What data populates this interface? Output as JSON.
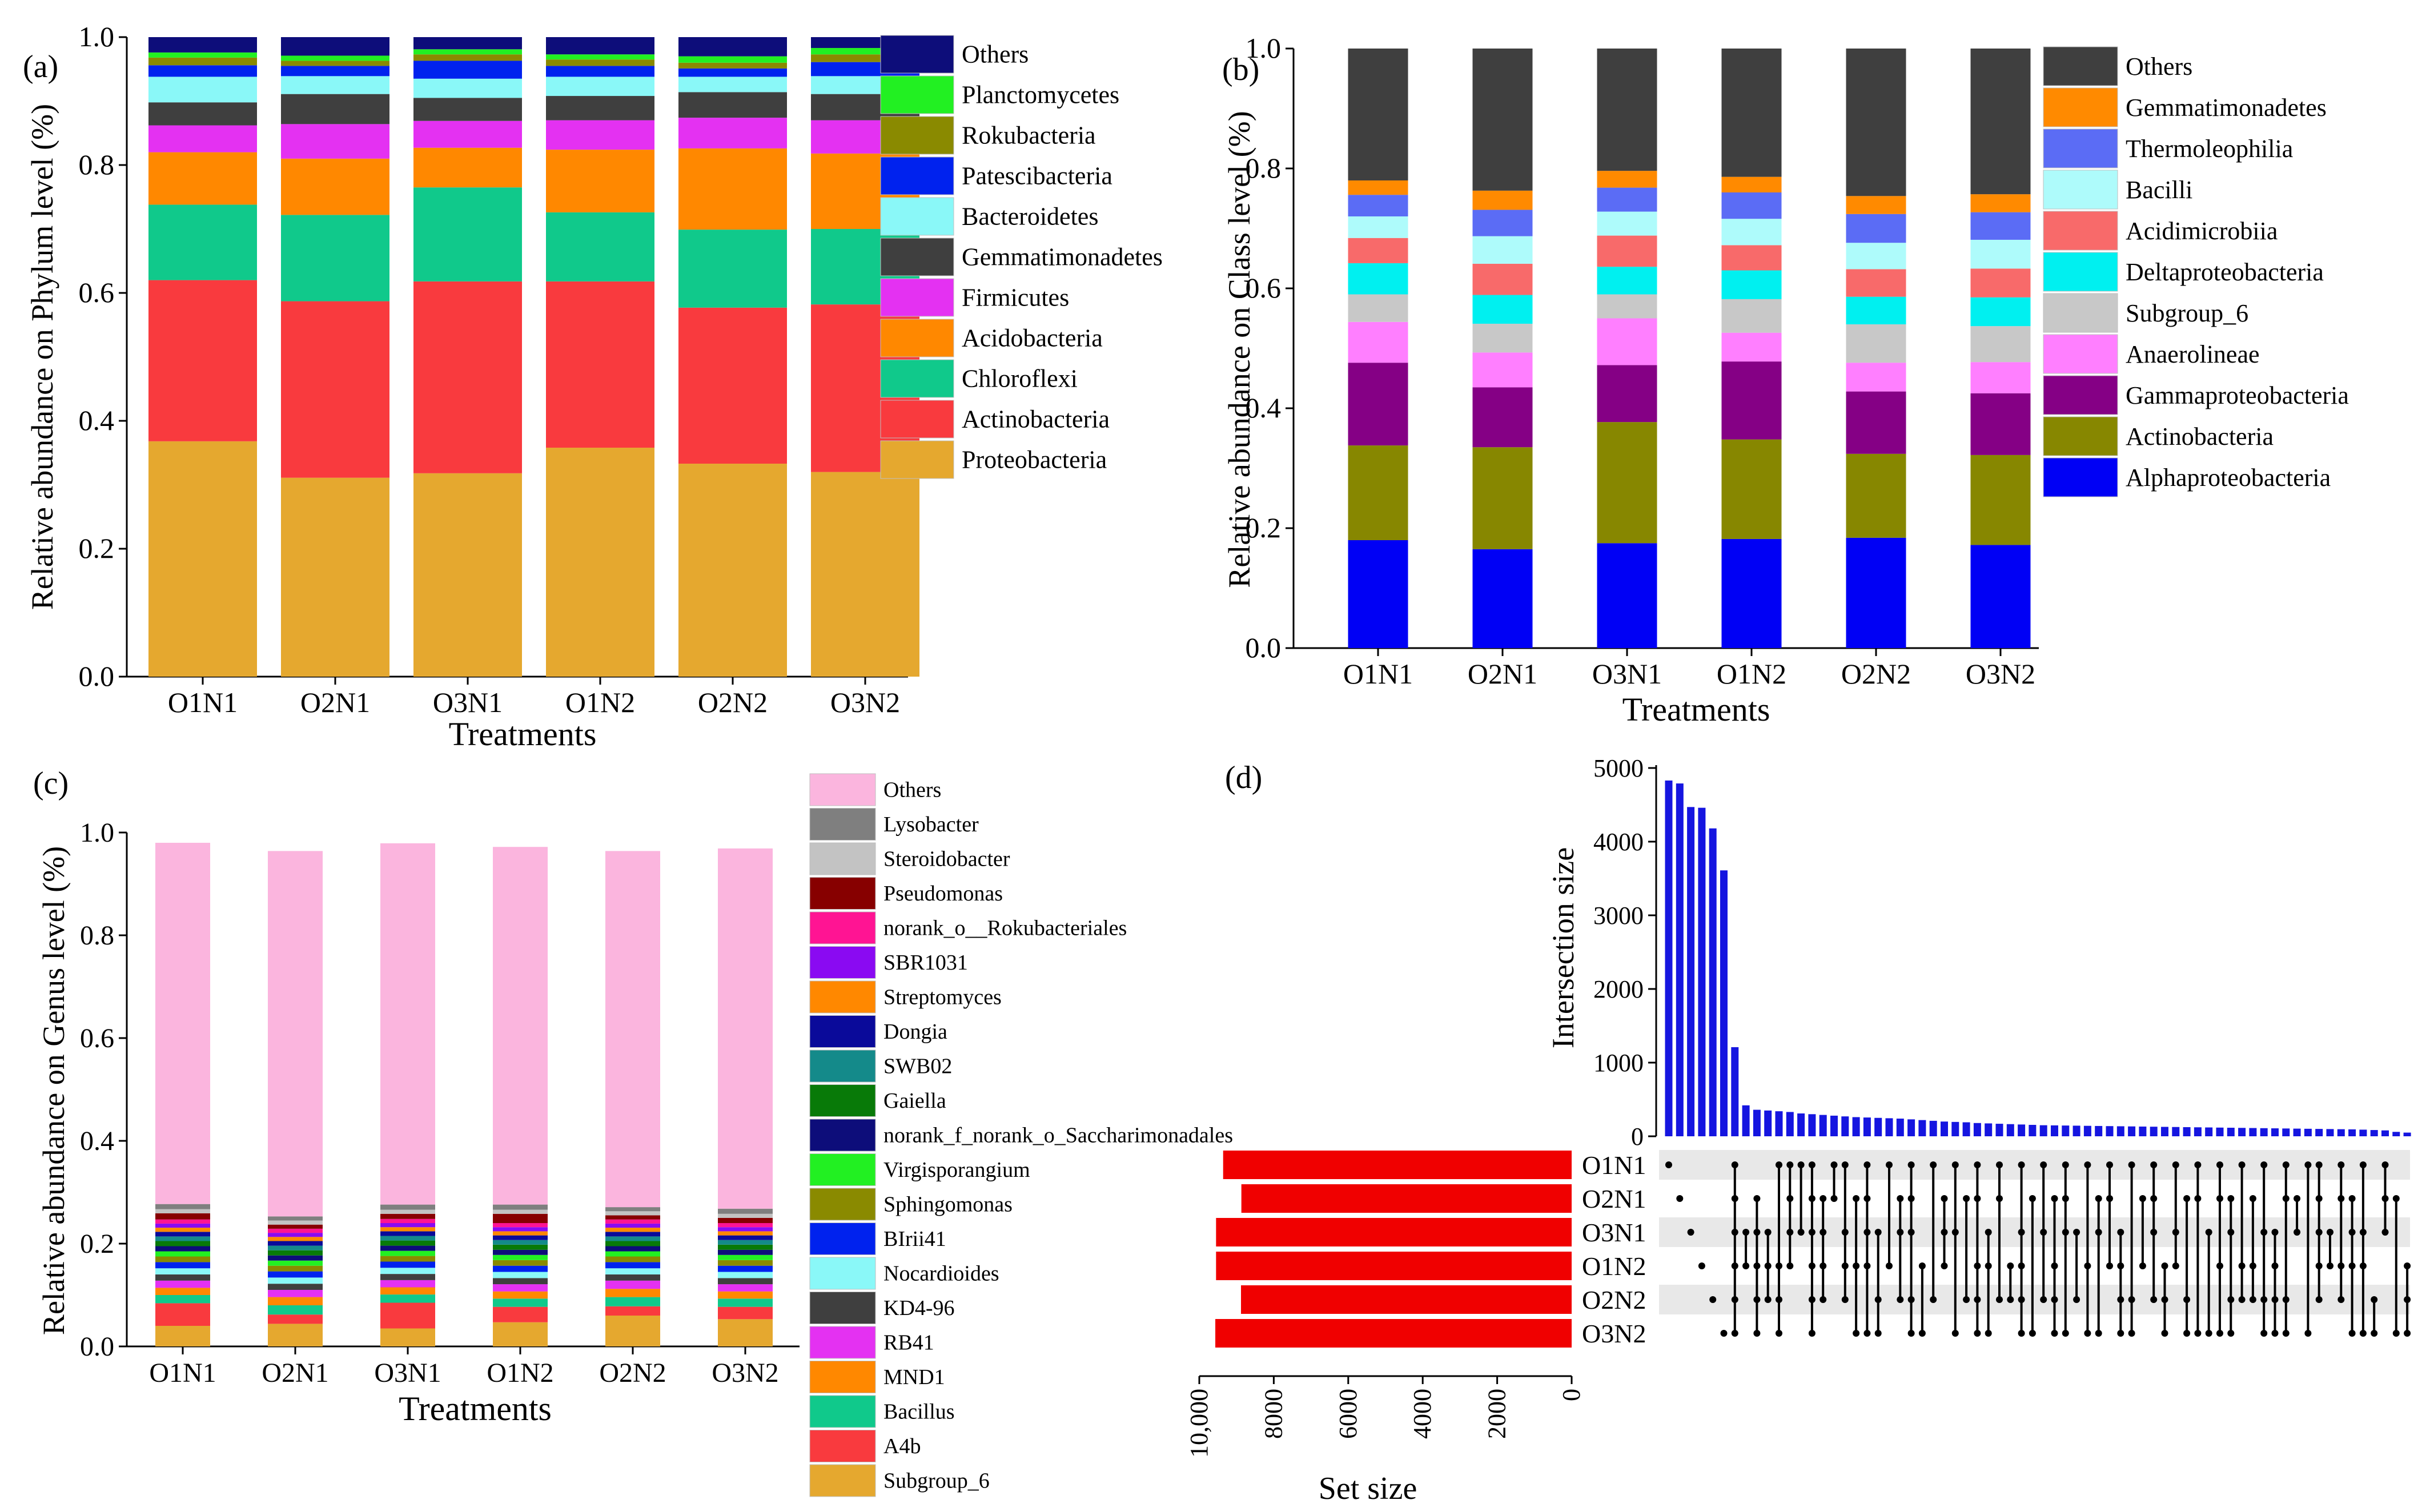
{
  "chart_data": [
    {
      "panel": "(a)",
      "type": "bar",
      "stacked": true,
      "xlabel": "Treatments",
      "ylabel": "Relative abundance on Phylum level (%)",
      "ylim": [
        0,
        1.0
      ],
      "yticks": [
        "0.0",
        "0.2",
        "0.4",
        "0.6",
        "0.8",
        "1.0"
      ],
      "categories": [
        "O1N1",
        "O2N1",
        "O3N1",
        "O1N2",
        "O2N2",
        "O3N2"
      ],
      "legend_position": "right",
      "series": [
        {
          "name": "Proteobacteria",
          "color": "#E5A82F",
          "values": [
            0.368,
            0.311,
            0.318,
            0.358,
            0.333,
            0.32
          ]
        },
        {
          "name": "Actinobacteria",
          "color": "#F93A3E",
          "values": [
            0.252,
            0.276,
            0.3,
            0.26,
            0.244,
            0.262
          ]
        },
        {
          "name": "Chloroflexi",
          "color": "#10C98B",
          "values": [
            0.118,
            0.135,
            0.147,
            0.108,
            0.122,
            0.118
          ]
        },
        {
          "name": "Acidobacteria",
          "color": "#FF8800",
          "values": [
            0.082,
            0.088,
            0.062,
            0.098,
            0.127,
            0.118
          ]
        },
        {
          "name": "Firmicutes",
          "color": "#E431F2",
          "values": [
            0.042,
            0.054,
            0.042,
            0.046,
            0.048,
            0.052
          ]
        },
        {
          "name": "Gemmatimonadetes",
          "color": "#3F3F3F",
          "values": [
            0.036,
            0.047,
            0.036,
            0.038,
            0.04,
            0.041
          ]
        },
        {
          "name": "Bacteroidetes",
          "color": "#8AF8F8",
          "values": [
            0.04,
            0.028,
            0.03,
            0.03,
            0.024,
            0.028
          ]
        },
        {
          "name": "Patescibacteria",
          "color": "#0022EE",
          "values": [
            0.018,
            0.016,
            0.028,
            0.017,
            0.013,
            0.022
          ]
        },
        {
          "name": "Rokubacteria",
          "color": "#8A8A00",
          "values": [
            0.012,
            0.008,
            0.01,
            0.01,
            0.009,
            0.012
          ]
        },
        {
          "name": "Planctomycetes",
          "color": "#22F022",
          "values": [
            0.008,
            0.008,
            0.008,
            0.008,
            0.01,
            0.01
          ]
        },
        {
          "name": "Others",
          "color": "#0D0D7A",
          "values": [
            0.024,
            0.029,
            0.019,
            0.027,
            0.03,
            0.017
          ]
        }
      ]
    },
    {
      "panel": "(b)",
      "type": "bar",
      "stacked": true,
      "xlabel": "Treatments",
      "ylabel": "Relative abundance on Class level (%)",
      "ylim": [
        0,
        1.0
      ],
      "yticks": [
        "0.0",
        "0.2",
        "0.4",
        "0.6",
        "0.8",
        "1.0"
      ],
      "categories": [
        "O1N1",
        "O2N1",
        "O3N1",
        "O1N2",
        "O2N2",
        "O3N2"
      ],
      "legend_position": "right",
      "series": [
        {
          "name": "Alphaproteobacteria",
          "color": "#0000F5",
          "values": [
            0.18,
            0.165,
            0.175,
            0.182,
            0.184,
            0.172
          ]
        },
        {
          "name": "Actinobacteria",
          "color": "#878700",
          "values": [
            0.158,
            0.17,
            0.202,
            0.166,
            0.14,
            0.15
          ]
        },
        {
          "name": "Gammaproteobacteria",
          "color": "#850085",
          "values": [
            0.138,
            0.1,
            0.095,
            0.13,
            0.104,
            0.103
          ]
        },
        {
          "name": "Anaerolineae",
          "color": "#FF7FFF",
          "values": [
            0.068,
            0.058,
            0.078,
            0.048,
            0.048,
            0.052
          ]
        },
        {
          "name": "Subgroup_6",
          "color": "#C8C8C8",
          "values": [
            0.046,
            0.048,
            0.04,
            0.056,
            0.064,
            0.06
          ]
        },
        {
          "name": "Deltaproteobacteria",
          "color": "#00F0F0",
          "values": [
            0.052,
            0.048,
            0.046,
            0.048,
            0.046,
            0.048
          ]
        },
        {
          "name": "Acidimicrobiia",
          "color": "#F86A6A",
          "values": [
            0.042,
            0.052,
            0.052,
            0.042,
            0.046,
            0.048
          ]
        },
        {
          "name": "Bacilli",
          "color": "#AEFBFB",
          "values": [
            0.036,
            0.046,
            0.04,
            0.044,
            0.044,
            0.048
          ]
        },
        {
          "name": "Thermoleophilia",
          "color": "#5B6CF5",
          "values": [
            0.036,
            0.044,
            0.04,
            0.044,
            0.048,
            0.046
          ]
        },
        {
          "name": "Gemmatimonadetes",
          "color": "#FF8A00",
          "values": [
            0.024,
            0.032,
            0.028,
            0.026,
            0.03,
            0.03
          ]
        },
        {
          "name": "Others",
          "color": "#3F3F3F",
          "values": [
            0.22,
            0.237,
            0.204,
            0.214,
            0.246,
            0.243
          ]
        }
      ]
    },
    {
      "panel": "(c)",
      "type": "bar",
      "stacked": true,
      "xlabel": "Treatments",
      "ylabel": "Relative abundance on Genus level (%)",
      "ylim": [
        0,
        1.0
      ],
      "yticks": [
        "0.0",
        "0.2",
        "0.4",
        "0.6",
        "0.8",
        "1.0"
      ],
      "categories": [
        "O1N1",
        "O2N1",
        "O3N1",
        "O1N2",
        "O2N2",
        "O3N2"
      ],
      "legend_position": "right",
      "series": [
        {
          "name": "Subgroup_6",
          "color": "#E5A82F",
          "values": [
            0.04,
            0.044,
            0.035,
            0.047,
            0.06,
            0.053
          ]
        },
        {
          "name": "A4b",
          "color": "#F93A3E",
          "values": [
            0.044,
            0.018,
            0.05,
            0.03,
            0.018,
            0.024
          ]
        },
        {
          "name": "Bacillus",
          "color": "#10C98B",
          "values": [
            0.016,
            0.018,
            0.016,
            0.016,
            0.018,
            0.016
          ]
        },
        {
          "name": "MND1",
          "color": "#FF8800",
          "values": [
            0.014,
            0.016,
            0.014,
            0.014,
            0.016,
            0.014
          ]
        },
        {
          "name": "RB41",
          "color": "#E431F2",
          "values": [
            0.014,
            0.014,
            0.014,
            0.014,
            0.016,
            0.014
          ]
        },
        {
          "name": "KD4-96",
          "color": "#3F3F3F",
          "values": [
            0.012,
            0.012,
            0.012,
            0.012,
            0.012,
            0.012
          ]
        },
        {
          "name": "Nocardioides",
          "color": "#8AF8F8",
          "values": [
            0.012,
            0.012,
            0.012,
            0.012,
            0.012,
            0.012
          ]
        },
        {
          "name": "BIrii41",
          "color": "#0022EE",
          "values": [
            0.012,
            0.012,
            0.012,
            0.012,
            0.012,
            0.012
          ]
        },
        {
          "name": "Sphingomonas",
          "color": "#8A8A00",
          "values": [
            0.011,
            0.011,
            0.011,
            0.011,
            0.011,
            0.011
          ]
        },
        {
          "name": "Virgisporangium",
          "color": "#22F022",
          "values": [
            0.01,
            0.01,
            0.01,
            0.01,
            0.01,
            0.01
          ]
        },
        {
          "name": "norank_f_norank_o_Saccharimonadales",
          "color": "#0D0D7A",
          "values": [
            0.01,
            0.01,
            0.01,
            0.01,
            0.01,
            0.01
          ]
        },
        {
          "name": "Gaiella",
          "color": "#087A08",
          "values": [
            0.01,
            0.01,
            0.01,
            0.01,
            0.01,
            0.01
          ]
        },
        {
          "name": "SWB02",
          "color": "#148A8A",
          "values": [
            0.009,
            0.009,
            0.009,
            0.009,
            0.009,
            0.009
          ]
        },
        {
          "name": "Dongia",
          "color": "#0A0A9A",
          "values": [
            0.009,
            0.009,
            0.009,
            0.009,
            0.009,
            0.009
          ]
        },
        {
          "name": "Streptomyces",
          "color": "#FF8800",
          "values": [
            0.008,
            0.008,
            0.008,
            0.008,
            0.008,
            0.008
          ]
        },
        {
          "name": "SBR1031",
          "color": "#8A0AF2",
          "values": [
            0.008,
            0.008,
            0.008,
            0.008,
            0.008,
            0.008
          ]
        },
        {
          "name": "norank_o__Rokubacteriales",
          "color": "#FF1493",
          "values": [
            0.008,
            0.008,
            0.008,
            0.008,
            0.008,
            0.008
          ]
        },
        {
          "name": "Pseudomonas",
          "color": "#870000",
          "values": [
            0.012,
            0.008,
            0.01,
            0.018,
            0.008,
            0.01
          ]
        },
        {
          "name": "Steroidobacter",
          "color": "#C3C3C3",
          "values": [
            0.008,
            0.008,
            0.008,
            0.008,
            0.008,
            0.008
          ]
        },
        {
          "name": "Lysobacter",
          "color": "#7F7F7F",
          "values": [
            0.01,
            0.008,
            0.01,
            0.01,
            0.008,
            0.01
          ]
        },
        {
          "name": "Others",
          "color": "#FBB5DE",
          "values": [
            0.703,
            0.711,
            0.703,
            0.696,
            0.693,
            0.701
          ]
        }
      ]
    },
    {
      "panel": "(d)",
      "type": "upset",
      "intersection_axis": {
        "ylabel": "Intersection size",
        "ylim": [
          0,
          5000
        ],
        "yticks": [
          "0",
          "1000",
          "2000",
          "3000",
          "4000",
          "5000"
        ],
        "bar_color": "#1515E0",
        "values": [
          4830,
          4790,
          4470,
          4460,
          4180,
          3610,
          1210,
          420,
          360,
          350,
          340,
          330,
          310,
          300,
          290,
          280,
          270,
          260,
          255,
          250,
          245,
          240,
          230,
          220,
          210,
          200,
          195,
          190,
          180,
          175,
          170,
          165,
          160,
          155,
          150,
          148,
          146,
          144,
          142,
          140,
          138,
          136,
          134,
          132,
          130,
          128,
          126,
          124,
          122,
          120,
          118,
          116,
          114,
          112,
          110,
          108,
          106,
          104,
          102,
          100,
          98,
          96,
          94,
          90,
          85,
          80,
          60,
          50
        ]
      },
      "set_size_axis": {
        "xlabel": "Set size",
        "xticks": [
          "10,000",
          "8000",
          "6000",
          "4000",
          "2000",
          "0"
        ],
        "xlim": [
          0,
          10000
        ],
        "bar_color": "#F00000",
        "sets": [
          "O1N1",
          "O2N1",
          "O3N1",
          "O1N2",
          "O2N2",
          "O3N2"
        ],
        "values": [
          9360,
          8870,
          9550,
          9550,
          8880,
          9570
        ]
      },
      "matrix_membership": [
        [
          0
        ],
        [
          1
        ],
        [
          2
        ],
        [
          3
        ],
        [
          4
        ],
        [
          5
        ],
        [
          0,
          1,
          2,
          3,
          4,
          5
        ],
        [
          2,
          3
        ],
        [
          1,
          2,
          3,
          4,
          5
        ],
        [
          2,
          3,
          4
        ],
        [
          0,
          3,
          4,
          5
        ],
        [
          0,
          1,
          2,
          3
        ],
        [
          0,
          2
        ],
        [
          0,
          1,
          2,
          3,
          4,
          5
        ],
        [
          1,
          2,
          3,
          4
        ],
        [
          0,
          1
        ],
        [
          0,
          2,
          3,
          4
        ],
        [
          1,
          3,
          5
        ],
        [
          0,
          1,
          2,
          3,
          5
        ],
        [
          2,
          4,
          5
        ],
        [
          0,
          3
        ],
        [
          1,
          2,
          4
        ],
        [
          0,
          1,
          2,
          4,
          5
        ],
        [
          3,
          5
        ],
        [
          0,
          4
        ],
        [
          1,
          2,
          3
        ],
        [
          0,
          2,
          5
        ],
        [
          1,
          4
        ],
        [
          0,
          1,
          3,
          4,
          5
        ],
        [
          2,
          3,
          5
        ],
        [
          0,
          1,
          4
        ],
        [
          3,
          4
        ],
        [
          0,
          2,
          3,
          4,
          5
        ],
        [
          1,
          5
        ],
        [
          0,
          2,
          4
        ],
        [
          1,
          3,
          4,
          5
        ],
        [
          0,
          1,
          2,
          5
        ],
        [
          2,
          4
        ],
        [
          0,
          3,
          5
        ],
        [
          1,
          2,
          5
        ],
        [
          0,
          1,
          3
        ],
        [
          2,
          3,
          4,
          5
        ],
        [
          0,
          4,
          5
        ],
        [
          1,
          3
        ],
        [
          0,
          1,
          2,
          4
        ],
        [
          3,
          4,
          5
        ],
        [
          0,
          2,
          3
        ],
        [
          1,
          4,
          5
        ],
        [
          0,
          1,
          5
        ],
        [
          2,
          5
        ],
        [
          0,
          1,
          3,
          5
        ],
        [
          1,
          2,
          4,
          5
        ],
        [
          0,
          3,
          4
        ],
        [
          1,
          3,
          4
        ],
        [
          0,
          2,
          4,
          5
        ],
        [
          2,
          3,
          4,
          5
        ],
        [
          0,
          1,
          4,
          5
        ],
        [
          1,
          2
        ],
        [
          0,
          5
        ],
        [
          0,
          1,
          2,
          3,
          4
        ],
        [
          2,
          3
        ],
        [
          0,
          1,
          3,
          4
        ],
        [
          1,
          2,
          3,
          5
        ],
        [
          0,
          2,
          3,
          5
        ],
        [
          4,
          5
        ],
        [
          0,
          1,
          2
        ],
        [
          1,
          5
        ],
        [
          3,
          4,
          5
        ]
      ]
    }
  ]
}
